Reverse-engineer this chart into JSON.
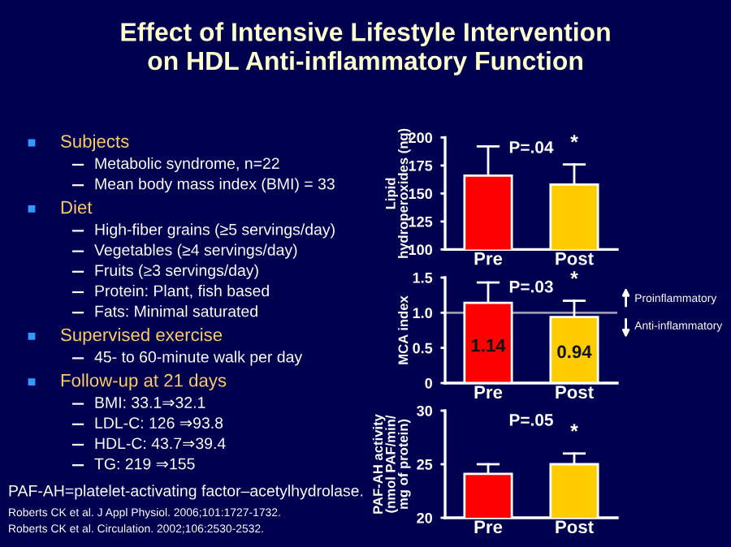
{
  "chart_data": [
    {
      "type": "other",
      "title": "Effect of Intensive Lifestyle Intervention\non HDL Anti-inflammatory Function"
    },
    {
      "type": "other",
      "title": "Subjects",
      "annotations": [
        "Metabolic syndrome, n=22",
        "Mean body mass index (BMI) = 33"
      ]
    },
    {
      "type": "other",
      "title": "Diet",
      "annotations": [
        "High-fiber grains (≥5 servings/day)",
        "Vegetables (≥4 servings/day)",
        "Fruits (≥3 servings/day)",
        "Protein: Plant, fish based",
        "Fats: Minimal saturated"
      ]
    },
    {
      "type": "other",
      "title": "Supervised exercise",
      "annotations": [
        "45- to 60-minute walk per day"
      ]
    },
    {
      "type": "other",
      "title": "Follow-up at 21 days",
      "annotations": [
        "BMI: 33.1⇒32.1",
        "LDL-C: 126 ⇒93.8",
        "HDL-C: 43.7⇒39.4",
        "TG: 219 ⇒155"
      ]
    },
    {
      "type": "other",
      "annotations": [
        "PAF-AH=platelet-activating factor–acetylhydrolase.",
        "Roberts CK et al. J Appl Physiol. 2006;101:1727-1732.",
        "Roberts CK et al. Circulation. 2002;106:2530-2532."
      ]
    },
    {
      "type": "bar",
      "ylabel": "Lipid\nhydroperoxides (ng)",
      "categories": [
        "Pre",
        "Post"
      ],
      "values": [
        166,
        158
      ],
      "colors": [
        "#ff0000",
        "#ffcc00"
      ],
      "errors": [
        [
          166,
          192
        ],
        [
          158,
          176
        ]
      ],
      "ylim": [
        100,
        200
      ],
      "yticks": [
        100,
        125,
        150,
        175,
        200
      ],
      "annotations": [
        "P=.04",
        "*"
      ]
    },
    {
      "type": "bar",
      "ylabel": "MCA index",
      "categories": [
        "Pre",
        "Post"
      ],
      "values": [
        1.14,
        0.94
      ],
      "colors": [
        "#ff0000",
        "#ffcc00"
      ],
      "errors": [
        [
          1.14,
          1.43
        ],
        [
          0.94,
          1.17
        ]
      ],
      "ylim": [
        0,
        1.5
      ],
      "yticks": [
        0,
        0.5,
        {
          "value": 1.0,
          "label": "1.0"
        },
        1.5
      ],
      "data_labels": true,
      "ref_lines": [
        {
          "axis": "y",
          "value": 1.0,
          "color": "#9a9ab4"
        }
      ],
      "annotations": [
        "P=.03",
        "*",
        "Proinflammatory",
        "Anti-inflammatory"
      ]
    },
    {
      "type": "bar",
      "ylabel": "PAF-AH activity\n(nmol PAF/min/\nmg of protein)",
      "categories": [
        "Pre",
        "Post"
      ],
      "values": [
        24.1,
        25.0
      ],
      "colors": [
        "#ff0000",
        "#ffcc00"
      ],
      "errors": [
        [
          24.1,
          25.0
        ],
        [
          25.0,
          26.0
        ]
      ],
      "ylim": [
        20,
        30
      ],
      "yticks": [
        20,
        25,
        30
      ],
      "annotations": [
        "P=.05",
        "*"
      ]
    }
  ]
}
